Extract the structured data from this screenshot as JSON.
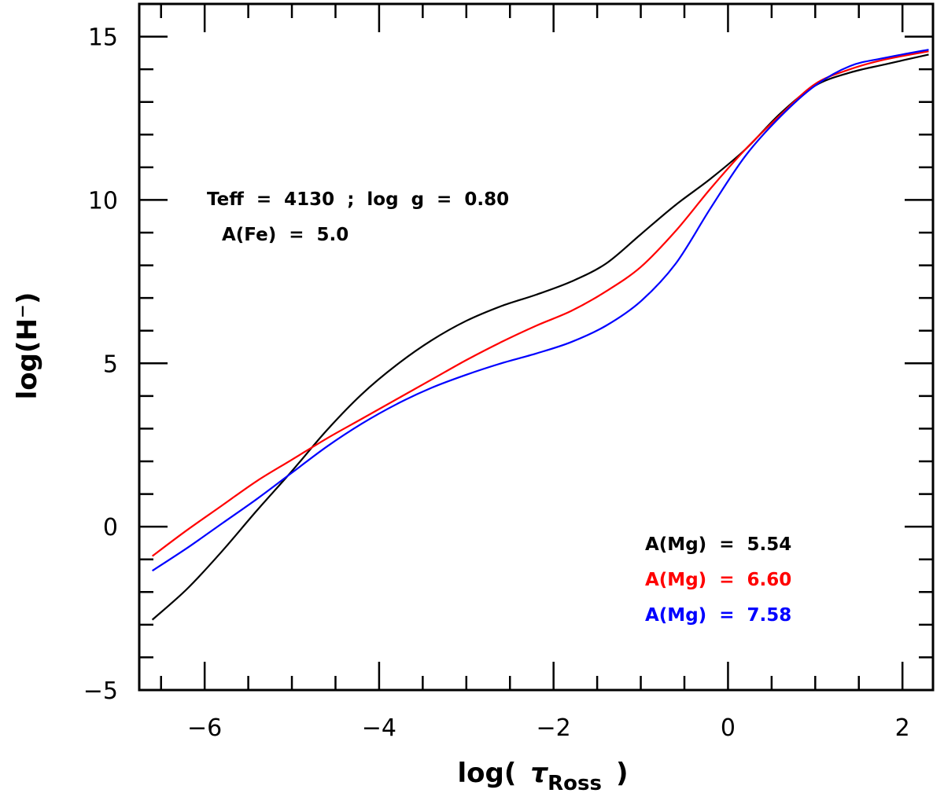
{
  "chart_data": {
    "type": "line",
    "xlabel_prefix": "log(",
    "xlabel_symbol": "τ",
    "xlabel_subscript": "Ross",
    "xlabel_suffix": ")",
    "ylabel": "log(H⁻)",
    "xlim": [
      -6.75,
      2.35
    ],
    "ylim": [
      -5,
      16
    ],
    "x_ticks": [
      -6,
      -4,
      -2,
      0,
      2
    ],
    "x_tick_labels": [
      "−6",
      "−4",
      "−2",
      "0",
      "2"
    ],
    "y_ticks": [
      -5,
      0,
      5,
      10,
      15
    ],
    "y_tick_labels": [
      "−5",
      "0",
      "5",
      "10",
      "15"
    ],
    "x_minor_step": 0.5,
    "y_minor_step": 1,
    "annotation_lines": [
      "Teff  =  4130  ;  log  g  =  0.80",
      "A(Fe)  =  5.0"
    ],
    "series": [
      {
        "name": "A(Mg)  =  5.54",
        "color": "#000000",
        "x": [
          -6.6,
          -6.2,
          -5.8,
          -5.4,
          -5.0,
          -4.6,
          -4.2,
          -3.8,
          -3.4,
          -3.0,
          -2.6,
          -2.2,
          -1.8,
          -1.4,
          -1.0,
          -0.6,
          -0.2,
          0.2,
          0.6,
          1.0,
          1.4,
          1.8,
          2.3
        ],
        "values": [
          -2.85,
          -1.9,
          -0.75,
          0.5,
          1.7,
          2.95,
          4.05,
          4.95,
          5.7,
          6.3,
          6.75,
          7.1,
          7.5,
          8.05,
          8.95,
          9.85,
          10.65,
          11.55,
          12.65,
          13.5,
          13.9,
          14.15,
          14.45
        ]
      },
      {
        "name": "A(Mg)  =  6.60",
        "color": "#ff0000",
        "x": [
          -6.6,
          -6.2,
          -5.8,
          -5.4,
          -5.0,
          -4.6,
          -4.2,
          -3.8,
          -3.4,
          -3.0,
          -2.6,
          -2.2,
          -1.8,
          -1.4,
          -1.0,
          -0.6,
          -0.2,
          0.2,
          0.6,
          1.0,
          1.4,
          1.8,
          2.3
        ],
        "values": [
          -0.9,
          -0.1,
          0.65,
          1.4,
          2.05,
          2.7,
          3.3,
          3.9,
          4.5,
          5.1,
          5.65,
          6.15,
          6.6,
          7.2,
          7.95,
          9.05,
          10.35,
          11.55,
          12.6,
          13.55,
          14.0,
          14.3,
          14.55
        ]
      },
      {
        "name": "A(Mg)  =  7.58",
        "color": "#0000ff",
        "x": [
          -6.6,
          -6.2,
          -5.8,
          -5.4,
          -5.0,
          -4.6,
          -4.2,
          -3.8,
          -3.4,
          -3.0,
          -2.6,
          -2.2,
          -1.8,
          -1.4,
          -1.0,
          -0.6,
          -0.2,
          0.2,
          0.6,
          1.0,
          1.4,
          1.8,
          2.3
        ],
        "values": [
          -1.35,
          -0.65,
          0.1,
          0.85,
          1.65,
          2.45,
          3.15,
          3.75,
          4.25,
          4.65,
          5.0,
          5.3,
          5.65,
          6.15,
          6.9,
          8.05,
          9.75,
          11.35,
          12.55,
          13.5,
          14.1,
          14.35,
          14.6
        ]
      }
    ]
  }
}
